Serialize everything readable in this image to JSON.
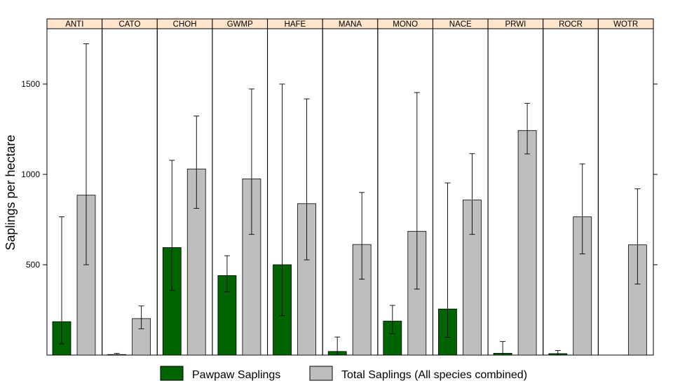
{
  "chart_data": {
    "type": "bar",
    "title": "",
    "xlabel": "",
    "ylabel": "Saplings per hectare",
    "ylim": [
      0,
      1800
    ],
    "yticks": [
      500,
      1000,
      1500
    ],
    "categories": [
      "ANTI",
      "CATO",
      "CHOH",
      "GWMP",
      "HAFE",
      "MANA",
      "MONO",
      "NACE",
      "PRWI",
      "ROCR",
      "WOTR"
    ],
    "series": [
      {
        "name": "Pawpaw Saplings",
        "color": "#006400",
        "values": [
          185,
          3,
          595,
          440,
          500,
          20,
          188,
          255,
          10,
          8,
          0
        ],
        "err_low": [
          62,
          0,
          358,
          350,
          218,
          0,
          118,
          98,
          0,
          0,
          0
        ],
        "err_high": [
          765,
          10,
          1078,
          550,
          1500,
          100,
          275,
          953,
          75,
          25,
          0
        ]
      },
      {
        "name": "Total Saplings (All species combined)",
        "color": "#bebebe",
        "values": [
          885,
          202,
          1030,
          975,
          838,
          612,
          685,
          858,
          1243,
          765,
          610
        ],
        "err_low": [
          500,
          145,
          812,
          668,
          527,
          420,
          365,
          668,
          1113,
          560,
          393
        ],
        "err_high": [
          1723,
          272,
          1323,
          1473,
          1418,
          900,
          1453,
          1115,
          1393,
          1058,
          920
        ]
      }
    ],
    "legend_position": "bottom",
    "strip_color": "#ffe5cc",
    "grid": false
  }
}
